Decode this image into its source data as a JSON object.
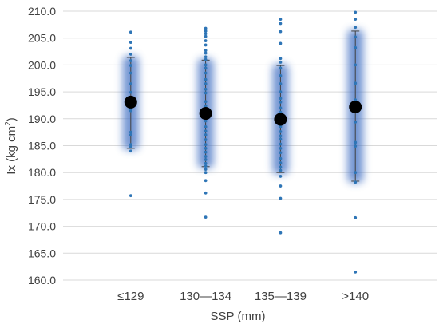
{
  "chart_data": {
    "type": "scatter",
    "title": "",
    "xlabel": "SSP (mm)",
    "ylabel": "Ix (kg cm²)",
    "ylabel_main": "Ix (kg cm",
    "ylabel_sup": "2",
    "ylabel_close": ")",
    "ylim": [
      160.0,
      210.0
    ],
    "yticks": [
      160.0,
      165.0,
      170.0,
      175.0,
      180.0,
      185.0,
      190.0,
      195.0,
      200.0,
      205.0,
      210.0
    ],
    "ytick_labels": [
      "160.0",
      "165.0",
      "170.0",
      "175.0",
      "180.0",
      "185.0",
      "190.0",
      "195.0",
      "200.0",
      "205.0",
      "210.0"
    ],
    "categories": [
      "≤129",
      "130—134",
      "135—139",
      ">140"
    ],
    "grid": true,
    "colors": {
      "points": "#2E75B6",
      "mean": "#000000",
      "band": "#4472C4",
      "errorbar": "#404040",
      "grid": "#D9D9D9",
      "text": "#404040"
    },
    "groups": [
      {
        "category": "≤129",
        "mean": 193.1,
        "sd_low": 184.5,
        "sd_high": 201.4,
        "points": [
          206.1,
          204.2,
          203.1,
          202.0,
          200.8,
          199.9,
          198.5,
          196.5,
          194.9,
          193.8,
          193.0,
          192.0,
          191.5,
          187.5,
          187.0,
          185.2,
          184.8,
          184.0,
          175.7
        ]
      },
      {
        "category": "130—134",
        "mean": 191.0,
        "sd_low": 181.1,
        "sd_high": 200.9,
        "points": [
          206.8,
          206.3,
          205.8,
          205.3,
          204.5,
          203.7,
          202.7,
          202.2,
          201.5,
          201.0,
          200.0,
          199.4,
          198.5,
          197.3,
          196.5,
          195.5,
          194.8,
          193.2,
          192.4,
          191.6,
          190.5,
          189.6,
          188.5,
          187.7,
          187.0,
          186.1,
          185.2,
          184.5,
          183.8,
          183.0,
          182.4,
          181.7,
          181.2,
          180.6,
          180.0,
          178.5,
          176.2,
          171.7
        ]
      },
      {
        "category": "135—139",
        "mean": 189.9,
        "sd_low": 180.0,
        "sd_high": 199.9,
        "points": [
          208.5,
          207.7,
          206.2,
          204.0,
          201.2,
          200.5,
          199.4,
          198.0,
          196.5,
          195.0,
          193.8,
          193.1,
          192.0,
          191.2,
          190.1,
          189.2,
          188.5,
          187.6,
          186.8,
          186.2,
          185.3,
          184.5,
          183.7,
          182.6,
          181.8,
          181.0,
          180.4,
          179.3,
          177.5,
          175.2,
          168.8
        ]
      },
      {
        "category": ">140",
        "mean": 192.2,
        "sd_low": 178.4,
        "sd_high": 206.3,
        "points": [
          209.8,
          208.5,
          207.0,
          205.2,
          203.2,
          200.0,
          196.6,
          193.5,
          192.8,
          191.3,
          189.4,
          185.6,
          184.9,
          180.0,
          178.2,
          171.6,
          161.5
        ]
      }
    ]
  }
}
